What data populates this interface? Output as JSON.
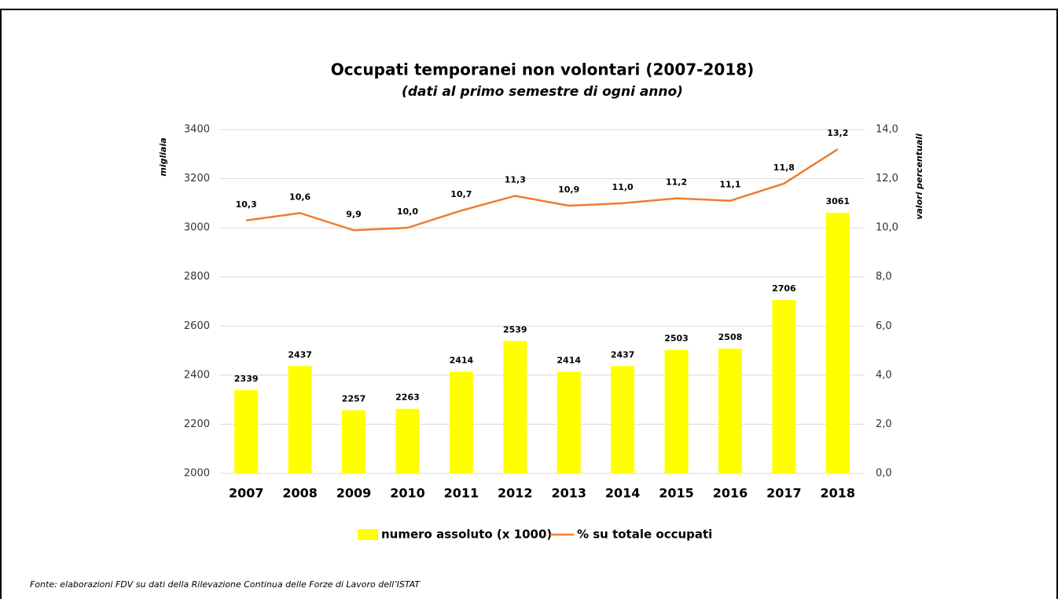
{
  "chart_data": {
    "type": "combo",
    "title": "Occupati temporanei non volontari (2007-2018)",
    "subtitle": "(dati al primo semestre  di ogni anno)",
    "y_label": "migliaia",
    "y2_label": "valori percentuali",
    "source": "Fonte: elaborazioni FDV su dati della Rilevazione Continua delle Forze di Lavoro dell’ISTAT",
    "categories": [
      "2007",
      "2008",
      "2009",
      "2010",
      "2011",
      "2012",
      "2013",
      "2014",
      "2015",
      "2016",
      "2017",
      "2018"
    ],
    "series": [
      {
        "name": "numero assoluto (x 1000)",
        "type": "bar",
        "color": "#ffff00",
        "values": [
          2339,
          2437,
          2257,
          2263,
          2414,
          2539,
          2414,
          2437,
          2503,
          2508,
          2706,
          3061
        ]
      },
      {
        "name": "% su totale occupati",
        "type": "line",
        "axis": "y2",
        "color": "#ed7d31",
        "values": [
          10.3,
          10.6,
          9.9,
          10.0,
          10.7,
          11.3,
          10.9,
          11.0,
          11.2,
          11.1,
          11.8,
          13.2
        ],
        "value_labels": [
          "10,3",
          "10,6",
          "9,9",
          "10,0",
          "10,7",
          "11,3",
          "10,9",
          "11,0",
          "11,2",
          "11,1",
          "11,8",
          "13,2"
        ]
      }
    ],
    "ylim": [
      2000,
      3400
    ],
    "yticks": [
      2000,
      2200,
      2400,
      2600,
      2800,
      3000,
      3200,
      3400
    ],
    "y2lim": [
      0,
      14
    ],
    "y2ticks": [
      {
        "value": 0,
        "label": "0,0"
      },
      {
        "value": 2,
        "label": "2,0"
      },
      {
        "value": 4,
        "label": "4,0"
      },
      {
        "value": 6,
        "label": "6,0"
      },
      {
        "value": 8,
        "label": "8,0"
      },
      {
        "value": 10,
        "label": "10,0"
      },
      {
        "value": 12,
        "label": "12,0"
      },
      {
        "value": 14,
        "label": "14,0"
      }
    ],
    "grid": true,
    "legend": "bottom"
  }
}
